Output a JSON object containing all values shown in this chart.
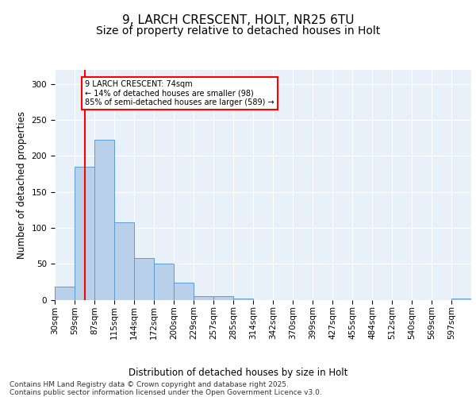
{
  "title1": "9, LARCH CRESCENT, HOLT, NR25 6TU",
  "title2": "Size of property relative to detached houses in Holt",
  "xlabel": "Distribution of detached houses by size in Holt",
  "ylabel": "Number of detached properties",
  "bar_values": [
    18,
    185,
    222,
    108,
    58,
    50,
    24,
    5,
    5,
    2,
    0,
    0,
    0,
    0,
    0,
    0,
    0,
    0,
    0,
    0,
    2
  ],
  "categories": [
    "30sqm",
    "59sqm",
    "87sqm",
    "115sqm",
    "144sqm",
    "172sqm",
    "200sqm",
    "229sqm",
    "257sqm",
    "285sqm",
    "314sqm",
    "342sqm",
    "370sqm",
    "399sqm",
    "427sqm",
    "455sqm",
    "484sqm",
    "512sqm",
    "540sqm",
    "569sqm",
    "597sqm"
  ],
  "bar_color": "#b8d0ea",
  "bar_edge_color": "#5b9bd5",
  "property_line_x": 1.5,
  "property_line_color": "red",
  "annotation_text": "9 LARCH CRESCENT: 74sqm\n← 14% of detached houses are smaller (98)\n85% of semi-detached houses are larger (589) →",
  "annotation_box_color": "white",
  "annotation_box_edge_color": "red",
  "ylim": [
    0,
    320
  ],
  "yticks": [
    0,
    50,
    100,
    150,
    200,
    250,
    300
  ],
  "background_color": "#e8f0fa",
  "footnote": "Contains HM Land Registry data © Crown copyright and database right 2025.\nContains public sector information licensed under the Open Government Licence v3.0.",
  "title1_fontsize": 11,
  "title2_fontsize": 10,
  "label_fontsize": 8.5,
  "tick_fontsize": 7.5,
  "footnote_fontsize": 6.5
}
